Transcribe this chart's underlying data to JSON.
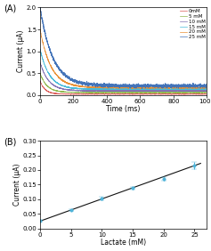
{
  "panel_A_label": "(A)",
  "panel_B_label": "(B)",
  "legend_labels_all": [
    "0mM",
    "5 mM",
    "10 mM",
    "15 mM",
    "20 mM",
    "25 mM"
  ],
  "concentrations": [
    0,
    5,
    10,
    15,
    20,
    25
  ],
  "steady_state_currents": [
    0.025,
    0.063,
    0.101,
    0.138,
    0.17,
    0.214
  ],
  "steady_state_errors": [
    0.003,
    0.004,
    0.006,
    0.005,
    0.006,
    0.012
  ],
  "fit_slope": 0.0076,
  "fit_intercept": 0.025,
  "xlabel_A": "Time (ms)",
  "ylabel_A": "Current (μA)",
  "xlabel_B": "Lactate (mM)",
  "ylabel_B": "Current (μA)",
  "xlim_A": [
    0,
    1000
  ],
  "ylim_A": [
    0,
    2.0
  ],
  "xlim_B": [
    0,
    27
  ],
  "ylim_B": [
    0,
    0.3
  ],
  "bg_color": "#ffffff",
  "ax_bg_color": "#ffffff",
  "line_colors_A": [
    "#d9534f",
    "#8ab444",
    "#7b6ab0",
    "#3eb8d8",
    "#e88a2a",
    "#3a6db5"
  ],
  "peak_currents": [
    0.32,
    0.5,
    0.75,
    1.05,
    1.5,
    2.0
  ],
  "tau": [
    30,
    40,
    50,
    55,
    65,
    75
  ],
  "noise_amps": [
    0.003,
    0.004,
    0.005,
    0.006,
    0.007,
    0.018
  ],
  "scatter_color": "#4db3d9",
  "fit_line_color": "#111111"
}
